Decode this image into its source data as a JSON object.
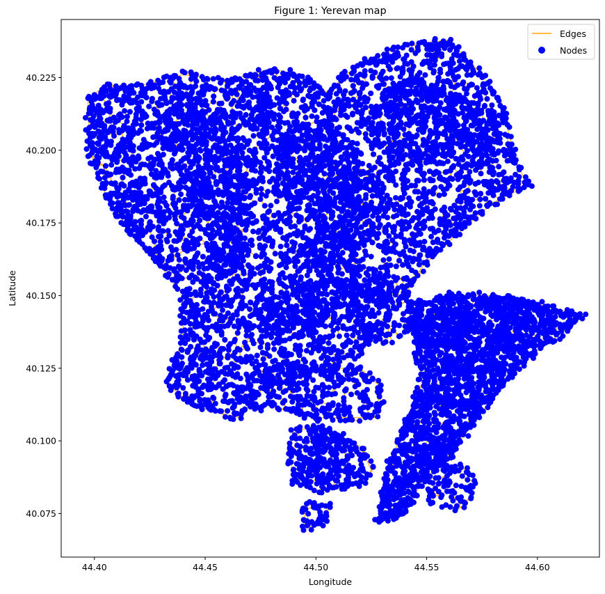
{
  "chart_data": {
    "type": "scatter",
    "title": "Figure 1: Yerevan map",
    "xlabel": "Longitude",
    "ylabel": "Latitude",
    "xlim": [
      44.385,
      44.628
    ],
    "ylim": [
      40.06,
      40.245
    ],
    "xticks": [
      44.4,
      44.45,
      44.5,
      44.55,
      44.6
    ],
    "xtick_labels": [
      "44.40",
      "44.45",
      "44.50",
      "44.55",
      "44.60"
    ],
    "yticks": [
      40.075,
      40.1,
      40.125,
      40.15,
      40.175,
      40.2,
      40.225
    ],
    "ytick_labels": [
      "40.075",
      "40.100",
      "40.125",
      "40.150",
      "40.175",
      "40.200",
      "40.225"
    ],
    "grid": false,
    "legend_position": "top-right",
    "series": [
      {
        "name": "Edges",
        "kind": "line",
        "color": "#FFA500"
      },
      {
        "name": "Nodes",
        "kind": "scatter",
        "color": "#0000FF"
      }
    ],
    "outline_polygons": [
      [
        [
          44.397,
          40.218
        ],
        [
          44.405,
          40.222
        ],
        [
          44.42,
          40.222
        ],
        [
          44.44,
          40.226
        ],
        [
          44.46,
          40.224
        ],
        [
          44.48,
          40.228
        ],
        [
          44.492,
          40.226
        ],
        [
          44.505,
          40.22
        ],
        [
          44.52,
          40.23
        ],
        [
          44.54,
          40.236
        ],
        [
          44.56,
          40.238
        ],
        [
          44.575,
          40.226
        ],
        [
          44.584,
          40.216
        ],
        [
          44.59,
          40.196
        ],
        [
          44.596,
          40.188
        ],
        [
          44.58,
          40.182
        ],
        [
          44.565,
          40.172
        ],
        [
          44.548,
          40.16
        ],
        [
          44.54,
          40.15
        ],
        [
          44.528,
          40.14
        ],
        [
          44.52,
          40.13
        ],
        [
          44.5,
          40.125
        ],
        [
          44.488,
          40.122
        ],
        [
          44.476,
          40.118
        ],
        [
          44.465,
          40.108
        ],
        [
          44.455,
          40.11
        ],
        [
          44.445,
          40.112
        ],
        [
          44.432,
          40.12
        ],
        [
          44.44,
          40.135
        ],
        [
          44.44,
          40.15
        ],
        [
          44.43,
          40.16
        ],
        [
          44.418,
          40.17
        ],
        [
          44.405,
          40.185
        ],
        [
          44.398,
          40.2
        ]
      ],
      [
        [
          44.542,
          40.146
        ],
        [
          44.56,
          40.15
        ],
        [
          44.58,
          40.15
        ],
        [
          44.6,
          40.147
        ],
        [
          44.621,
          40.143
        ],
        [
          44.605,
          40.134
        ],
        [
          44.59,
          40.125
        ],
        [
          44.575,
          40.11
        ],
        [
          44.56,
          40.095
        ],
        [
          44.548,
          40.086
        ],
        [
          44.54,
          40.075
        ],
        [
          44.528,
          40.072
        ],
        [
          44.532,
          40.09
        ],
        [
          44.54,
          40.105
        ],
        [
          44.548,
          40.12
        ],
        [
          44.545,
          40.135
        ]
      ],
      [
        [
          44.478,
          40.125
        ],
        [
          44.495,
          40.125
        ],
        [
          44.52,
          40.125
        ],
        [
          44.53,
          40.118
        ],
        [
          44.528,
          40.108
        ],
        [
          44.5,
          40.108
        ],
        [
          44.48,
          40.112
        ]
      ],
      [
        [
          44.49,
          40.104
        ],
        [
          44.505,
          40.104
        ],
        [
          44.52,
          40.098
        ],
        [
          44.525,
          40.09
        ],
        [
          44.52,
          40.085
        ],
        [
          44.5,
          40.083
        ],
        [
          44.49,
          40.086
        ],
        [
          44.488,
          40.096
        ]
      ],
      [
        [
          44.495,
          40.078
        ],
        [
          44.505,
          40.078
        ],
        [
          44.505,
          40.072
        ],
        [
          44.495,
          40.07
        ]
      ]
    ],
    "dense_clusters": [
      [
        44.42,
        40.18,
        0.01,
        0.01
      ],
      [
        44.455,
        40.19,
        0.015,
        0.02
      ],
      [
        44.47,
        40.215,
        0.01,
        0.008
      ],
      [
        44.5,
        40.195,
        0.02,
        0.015
      ],
      [
        44.515,
        40.18,
        0.015,
        0.015
      ],
      [
        44.545,
        40.21,
        0.02,
        0.015
      ],
      [
        44.57,
        40.205,
        0.012,
        0.012
      ],
      [
        44.505,
        40.16,
        0.015,
        0.015
      ],
      [
        44.49,
        40.145,
        0.015,
        0.01
      ],
      [
        44.53,
        40.145,
        0.015,
        0.012
      ],
      [
        44.46,
        40.165,
        0.01,
        0.01
      ],
      [
        44.45,
        40.125,
        0.008,
        0.008
      ],
      [
        44.475,
        40.118,
        0.006,
        0.008
      ],
      [
        44.505,
        40.095,
        0.012,
        0.008
      ],
      [
        44.56,
        40.085,
        0.012,
        0.01
      ],
      [
        44.585,
        40.13,
        0.01,
        0.008
      ],
      [
        44.555,
        40.14,
        0.015,
        0.006
      ],
      [
        44.59,
        40.145,
        0.015,
        0.004
      ],
      [
        44.44,
        40.21,
        0.015,
        0.01
      ],
      [
        44.41,
        40.205,
        0.008,
        0.01
      ]
    ]
  }
}
